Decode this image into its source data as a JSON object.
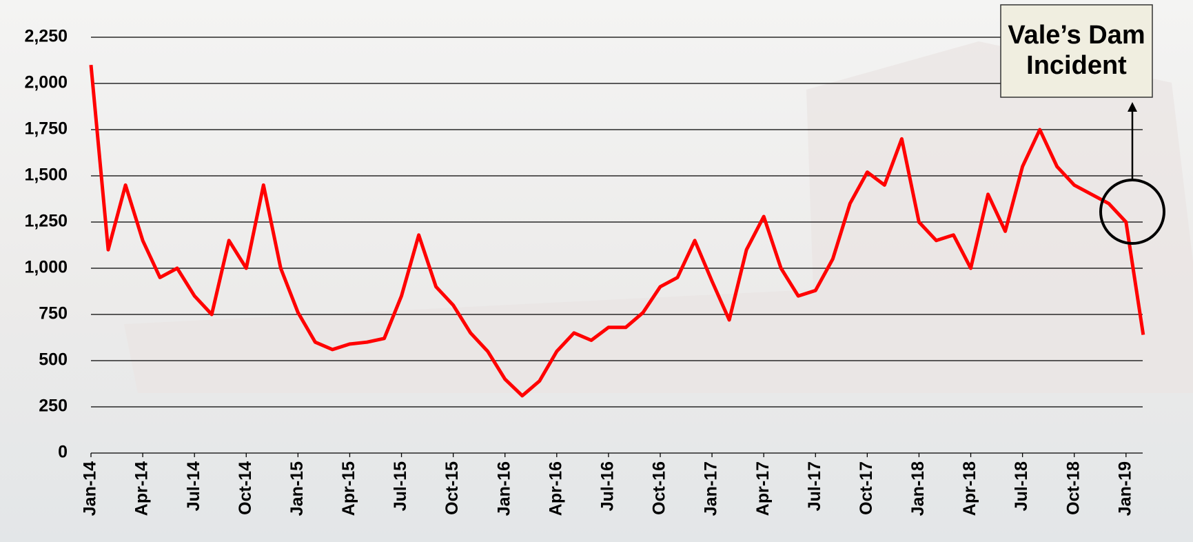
{
  "chart_data": {
    "type": "line",
    "color": "#ff0000",
    "grid": true,
    "annotation": "Vale’s Dam Incident",
    "categories": [
      "Jan-14",
      null,
      null,
      "Apr-14",
      null,
      null,
      "Jul-14",
      null,
      null,
      "Oct-14",
      null,
      null,
      "Jan-15",
      null,
      null,
      "Apr-15",
      null,
      null,
      "Jul-15",
      null,
      null,
      "Oct-15",
      null,
      null,
      "Jan-16",
      null,
      null,
      "Apr-16",
      null,
      null,
      "Jul-16",
      null,
      null,
      "Oct-16",
      null,
      null,
      "Jan-17",
      null,
      null,
      "Apr-17",
      null,
      null,
      "Jul-17",
      null,
      null,
      "Oct-17",
      null,
      null,
      "Jan-18",
      null,
      null,
      "Apr-18",
      null,
      null,
      "Jul-18",
      null,
      null,
      "Oct-18",
      null,
      null,
      "Jan-19",
      null
    ],
    "values": [
      2100,
      1100,
      1450,
      1150,
      950,
      1000,
      850,
      750,
      1150,
      1000,
      1450,
      1000,
      760,
      600,
      560,
      590,
      600,
      620,
      850,
      1180,
      900,
      800,
      650,
      550,
      400,
      310,
      390,
      550,
      650,
      610,
      680,
      680,
      760,
      900,
      950,
      1150,
      930,
      720,
      1100,
      1280,
      1000,
      850,
      880,
      1050,
      1350,
      1520,
      1450,
      1700,
      1250,
      1150,
      1180,
      1000,
      1400,
      1200,
      1550,
      1750,
      1550,
      1450,
      1400,
      1350,
      1250,
      640
    ],
    "ylim": [
      0,
      2250
    ],
    "yticks": [
      0,
      250,
      500,
      750,
      {
        "value": 1000,
        "label": "1,000"
      },
      {
        "value": 1250,
        "label": "1,250"
      },
      {
        "value": 1500,
        "label": "1,500"
      },
      {
        "value": 1750,
        "label": "1,750"
      },
      {
        "value": 2000,
        "label": "2,000"
      },
      {
        "value": 2250,
        "label": "2,250"
      }
    ]
  }
}
